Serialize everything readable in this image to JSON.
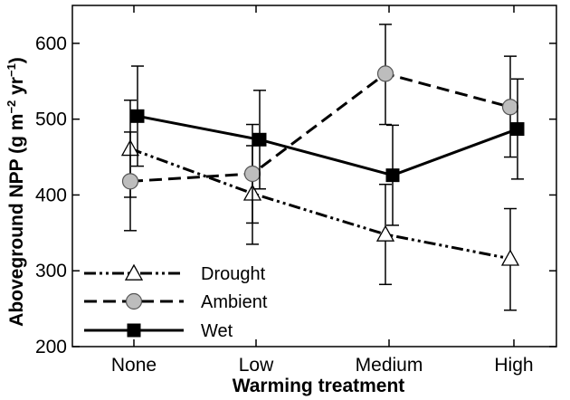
{
  "chart_data": {
    "type": "line",
    "title": "",
    "xlabel": "Warming treatment",
    "ylabel_main": "Aboveground NPP",
    "ylabel_g": "g m",
    "ylabel_exp1": "−2",
    "ylabel_yr": " yr",
    "ylabel_exp2": "−1",
    "categories": [
      "None",
      "Low",
      "Medium",
      "High"
    ],
    "ylim": [
      200,
      650
    ],
    "yticks": [
      200,
      300,
      400,
      500,
      600
    ],
    "legend_position": "bottom-left",
    "grid": false,
    "series": [
      {
        "name": "Drought",
        "marker": "triangle-open",
        "line_style": "dash-dot-dot",
        "values": [
          461,
          402,
          348,
          316
        ],
        "err_upper": [
          525,
          465,
          414,
          382
        ],
        "err_lower": [
          397,
          335,
          282,
          248
        ]
      },
      {
        "name": "Ambient",
        "marker": "circle-gray",
        "line_style": "dashed",
        "values": [
          418,
          428,
          560,
          516
        ],
        "err_upper": [
          483,
          493,
          625,
          583
        ],
        "err_lower": [
          353,
          363,
          493,
          450
        ]
      },
      {
        "name": "Wet",
        "marker": "square-filled",
        "line_style": "solid",
        "values": [
          504,
          473,
          426,
          487
        ],
        "err_upper": [
          570,
          538,
          492,
          553
        ],
        "err_lower": [
          438,
          408,
          360,
          421
        ]
      }
    ]
  },
  "colors": {
    "axis": "#000000",
    "marker_gray": "#bdbdbd",
    "marker_open": "#ffffff",
    "marker_filled": "#000000"
  }
}
